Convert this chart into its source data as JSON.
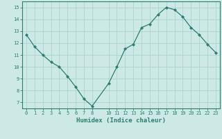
{
  "x": [
    0,
    1,
    2,
    3,
    4,
    5,
    6,
    7,
    8,
    10,
    11,
    12,
    13,
    14,
    15,
    16,
    17,
    18,
    19,
    20,
    21,
    22,
    23
  ],
  "y": [
    12.7,
    11.7,
    11.0,
    10.4,
    10.0,
    9.2,
    8.3,
    7.3,
    6.7,
    8.6,
    10.0,
    11.5,
    11.9,
    13.3,
    13.6,
    14.4,
    15.0,
    14.8,
    14.2,
    13.3,
    12.7,
    11.9,
    11.2
  ],
  "xlim": [
    -0.5,
    23.5
  ],
  "ylim": [
    6.5,
    15.5
  ],
  "yticks": [
    7,
    8,
    9,
    10,
    11,
    12,
    13,
    14,
    15
  ],
  "xticks": [
    0,
    1,
    2,
    3,
    4,
    5,
    6,
    7,
    8,
    10,
    11,
    12,
    13,
    14,
    15,
    16,
    17,
    18,
    19,
    20,
    21,
    22,
    23
  ],
  "xlabel": "Humidex (Indice chaleur)",
  "line_color": "#2d7d6e",
  "marker": "D",
  "marker_size": 2.0,
  "bg_color": "#cce9e5",
  "grid_color": "#aad4ce",
  "axis_color": "#2d7d6e",
  "tick_color": "#2d7d6e",
  "label_color": "#2d7d6e",
  "tick_fontsize": 5.0,
  "xlabel_fontsize": 6.5
}
